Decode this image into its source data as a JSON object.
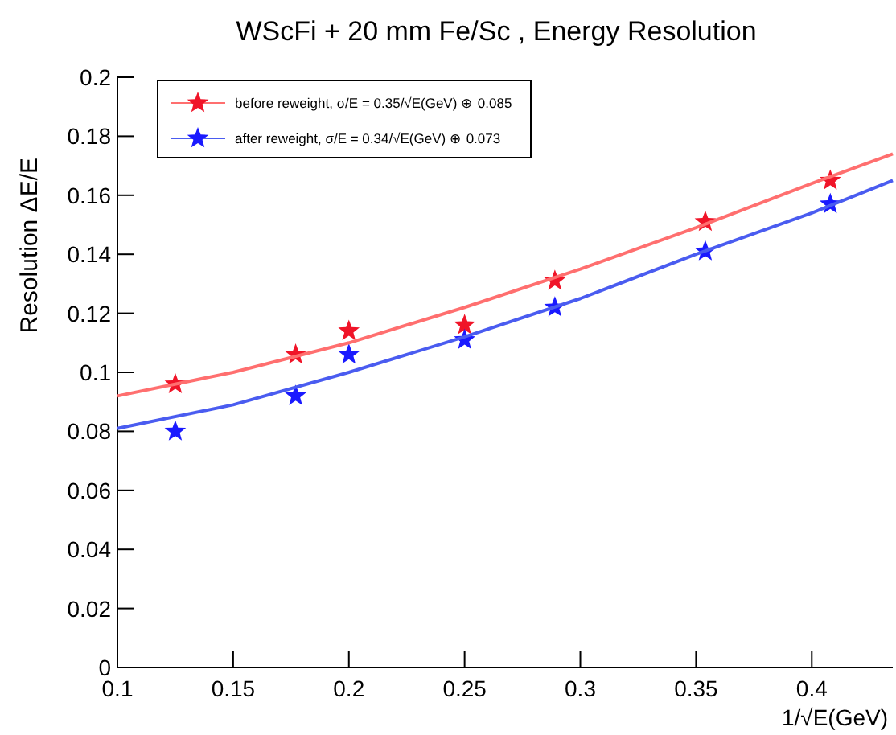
{
  "chart_data": {
    "type": "scatter",
    "title": "WScFi + 20 mm Fe/Sc  , Energy Resolution",
    "xlabel": "1/√E(GeV)",
    "ylabel": "Resolution ΔE/E",
    "xlim": [
      0.1,
      0.435
    ],
    "xticks": [
      0.1,
      0.15,
      0.2,
      0.25,
      0.3,
      0.35,
      0.4
    ],
    "ylim": [
      0,
      0.2
    ],
    "yticks": [
      0,
      0.02,
      0.04,
      0.06,
      0.08,
      0.1,
      0.12,
      0.14,
      0.16,
      0.18,
      0.2
    ],
    "grid": false,
    "legend": "top left",
    "marker": "star",
    "series": [
      {
        "name": "before reweight, σ/E = 0.35/√E(GeV) ⊕ 0.085",
        "color": "#f01428",
        "x": [
          0.125,
          0.177,
          0.2,
          0.25,
          0.289,
          0.354,
          0.408
        ],
        "values": [
          0.096,
          0.106,
          0.114,
          0.116,
          0.131,
          0.151,
          0.165
        ]
      },
      {
        "name": "after reweight, σ/E = 0.34/√E(GeV) ⊕ 0.073",
        "color": "#1a1aff",
        "x": [
          0.125,
          0.177,
          0.2,
          0.25,
          0.289,
          0.354,
          0.408
        ],
        "values": [
          0.08,
          0.092,
          0.106,
          0.111,
          0.122,
          0.141,
          0.157
        ]
      },
      {
        "type": "line",
        "color": "#ff6f6f",
        "marker": "none",
        "x": [
          0.1,
          0.15,
          0.2,
          0.25,
          0.3,
          0.35,
          0.4,
          0.435
        ],
        "values": [
          0.092,
          0.1,
          0.11,
          0.122,
          0.135,
          0.149,
          0.164,
          0.174
        ]
      },
      {
        "type": "line",
        "color": "#4a5cf0",
        "marker": "none",
        "x": [
          0.1,
          0.15,
          0.2,
          0.25,
          0.3,
          0.35,
          0.4,
          0.435
        ],
        "values": [
          0.081,
          0.089,
          0.1,
          0.112,
          0.125,
          0.14,
          0.154,
          0.165
        ]
      }
    ]
  }
}
